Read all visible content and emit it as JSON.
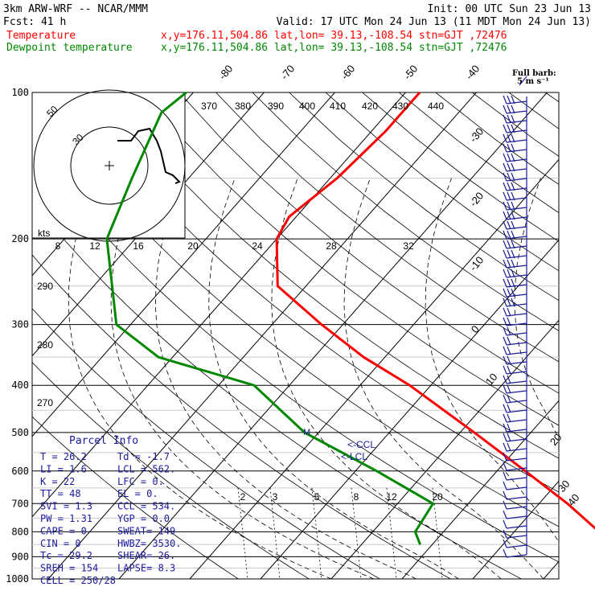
{
  "header": {
    "model": "3km ARW-WRF -- NCAR/MMM",
    "forecast": "Fcst:   41 h",
    "init": "Init: 00 UTC Sun 23 Jun 13",
    "valid": "Valid: 17 UTC Mon 24 Jun 13 (11 MDT Mon 24 Jun 13)",
    "temp_label": "Temperature",
    "dew_label": "Dewpoint temperature",
    "location": "x,y=176.11,504.86   lat,lon= 39.13,-108.54  stn=GJT ,72476",
    "temp_color": "#ff0000",
    "dew_color": "#008800"
  },
  "wind_scale": {
    "title": "Full barb:",
    "value": "5 m s⁻¹"
  },
  "chart_data": {
    "type": "skew-t",
    "pressure_levels": [
      100,
      200,
      300,
      400,
      500,
      600,
      700,
      800,
      900,
      1000
    ],
    "isotherm_labels": [
      "-80",
      "-70",
      "-60",
      "-50",
      "-40",
      "-30",
      "-20",
      "-10",
      "0",
      "10",
      "20",
      "30",
      "40"
    ],
    "theta_labels": [
      "370",
      "380",
      "390",
      "400",
      "410",
      "420",
      "430",
      "440"
    ],
    "theta_side_labels": [
      "290",
      "280",
      "270"
    ],
    "mixing_ratio_labels": [
      "2",
      "3",
      "5",
      "8",
      "12",
      "20"
    ],
    "hodograph": {
      "ring_labels": [
        "50",
        "30"
      ],
      "unit": "kts",
      "axis_labels": [
        "8",
        "12",
        "16",
        "20",
        "24",
        "28",
        "32"
      ]
    },
    "temperature": {
      "name": "Temperature",
      "p": [
        100,
        120,
        150,
        180,
        200,
        250,
        300,
        350,
        400,
        500,
        600,
        700,
        800,
        850
      ],
      "t": [
        -58,
        -58,
        -59,
        -61,
        -60,
        -54,
        -43,
        -33,
        -23,
        -8,
        4,
        14,
        22,
        26.2
      ]
    },
    "dewpoint": {
      "name": "Dewpoint temperature",
      "p": [
        100,
        110,
        150,
        200,
        300,
        350,
        400,
        500,
        600,
        700,
        800,
        850
      ],
      "td": [
        -91,
        -92,
        -88,
        -84,
        -72,
        -62,
        -45,
        -32,
        -17,
        -5,
        -4,
        -1.7
      ]
    },
    "ccl_label": "<-CCL",
    "lcl_label": "<-LCL"
  },
  "parcel_info": {
    "title": "Parcel Info",
    "rows": [
      [
        "T   =    26.2",
        "Td  =  -1.7"
      ],
      [
        "LI  =     1.6",
        "LCL =  562."
      ],
      [
        "K   =      22",
        "LFC =    0."
      ],
      [
        "TT  =      48",
        "EL  =    0."
      ],
      [
        "SVI =     1.3",
        "CCL =  534."
      ],
      [
        "PW  =    1.31",
        "YGP =   0.0"
      ],
      [
        "CAPE =      0",
        "SWEAT=   149"
      ],
      [
        "CIN  =      0",
        "HWBZ= 3530."
      ],
      [
        "Tc  =    29.2",
        "SHEAR=   26."
      ],
      [
        "SREH =    154",
        "LAPSE=   8.3"
      ],
      [
        "CELL = 250/28",
        ""
      ]
    ]
  }
}
